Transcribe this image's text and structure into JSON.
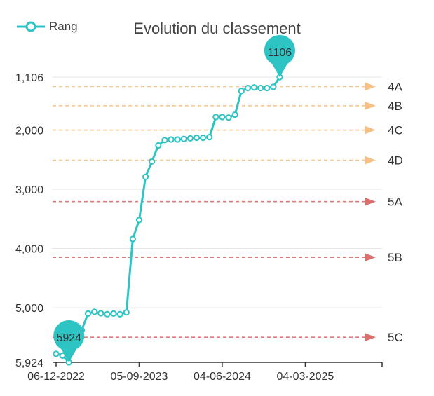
{
  "chart_data": {
    "type": "line",
    "title": "Evolution du classement",
    "legend": {
      "label": "Rang",
      "placement": "top-left"
    },
    "y_axis": {
      "inverted": true,
      "range": [
        5924,
        1106
      ],
      "ticks": [
        1106,
        2000,
        3000,
        4000,
        5000,
        5924
      ],
      "tick_labels": [
        "1,106",
        "2,000",
        "3,000",
        "4,000",
        "5,000",
        "5,924"
      ]
    },
    "x_axis": {
      "type": "date",
      "range": [
        "2022-12-06",
        "2025-10-31"
      ],
      "ticks": [
        "2022-12-06",
        "2023-09-05",
        "2024-06-04",
        "2025-03-04"
      ],
      "tick_labels": [
        "06-12-2022",
        "05-09-2023",
        "04-06-2024",
        "04-03-2025"
      ]
    },
    "grid": true,
    "series": [
      {
        "name": "Rang",
        "color": "#2EC4C4",
        "points": [
          {
            "x": "2022-12-06",
            "y": 5780
          },
          {
            "x": "2022-12-27",
            "y": 5810
          },
          {
            "x": "2023-01-17",
            "y": 5924
          },
          {
            "x": "2023-02-07",
            "y": 5560
          },
          {
            "x": "2023-02-28",
            "y": 5380
          },
          {
            "x": "2023-03-21",
            "y": 5100
          },
          {
            "x": "2023-04-11",
            "y": 5070
          },
          {
            "x": "2023-05-02",
            "y": 5095
          },
          {
            "x": "2023-05-23",
            "y": 5110
          },
          {
            "x": "2023-06-13",
            "y": 5100
          },
          {
            "x": "2023-07-04",
            "y": 5110
          },
          {
            "x": "2023-07-25",
            "y": 5080
          },
          {
            "x": "2023-08-15",
            "y": 3840
          },
          {
            "x": "2023-09-05",
            "y": 3520
          },
          {
            "x": "2023-09-26",
            "y": 2790
          },
          {
            "x": "2023-10-17",
            "y": 2530
          },
          {
            "x": "2023-11-07",
            "y": 2260
          },
          {
            "x": "2023-11-28",
            "y": 2170
          },
          {
            "x": "2023-12-19",
            "y": 2160
          },
          {
            "x": "2024-01-09",
            "y": 2160
          },
          {
            "x": "2024-01-30",
            "y": 2150
          },
          {
            "x": "2024-02-20",
            "y": 2140
          },
          {
            "x": "2024-03-12",
            "y": 2130
          },
          {
            "x": "2024-04-02",
            "y": 2130
          },
          {
            "x": "2024-04-23",
            "y": 2120
          },
          {
            "x": "2024-05-14",
            "y": 1780
          },
          {
            "x": "2024-06-04",
            "y": 1780
          },
          {
            "x": "2024-06-25",
            "y": 1790
          },
          {
            "x": "2024-07-16",
            "y": 1740
          },
          {
            "x": "2024-08-06",
            "y": 1340
          },
          {
            "x": "2024-08-27",
            "y": 1290
          },
          {
            "x": "2024-09-17",
            "y": 1280
          },
          {
            "x": "2024-10-08",
            "y": 1290
          },
          {
            "x": "2024-10-29",
            "y": 1290
          },
          {
            "x": "2024-11-19",
            "y": 1270
          },
          {
            "x": "2024-12-10",
            "y": 1106
          }
        ]
      }
    ],
    "markers": [
      {
        "label": "5924",
        "at_point": 2
      },
      {
        "label": "1106",
        "at_point": 35
      }
    ],
    "thresholds": [
      {
        "label": "4A",
        "y": 1265,
        "color": "#F5C58A",
        "arrow": "#F5BF85"
      },
      {
        "label": "4B",
        "y": 1590,
        "color": "#F5C58A",
        "arrow": "#F5BF85"
      },
      {
        "label": "4C",
        "y": 2000,
        "color": "#F5C58A",
        "arrow": "#F5BF85"
      },
      {
        "label": "4D",
        "y": 2510,
        "color": "#F5C58A",
        "arrow": "#F5BF85"
      },
      {
        "label": "5A",
        "y": 3210,
        "color": "#E07A7A",
        "arrow": "#D96F6F"
      },
      {
        "label": "5B",
        "y": 4150,
        "color": "#E07A7A",
        "arrow": "#D96F6F"
      },
      {
        "label": "5C",
        "y": 5500,
        "color": "#E07A7A",
        "arrow": "#D96F6F"
      }
    ]
  }
}
